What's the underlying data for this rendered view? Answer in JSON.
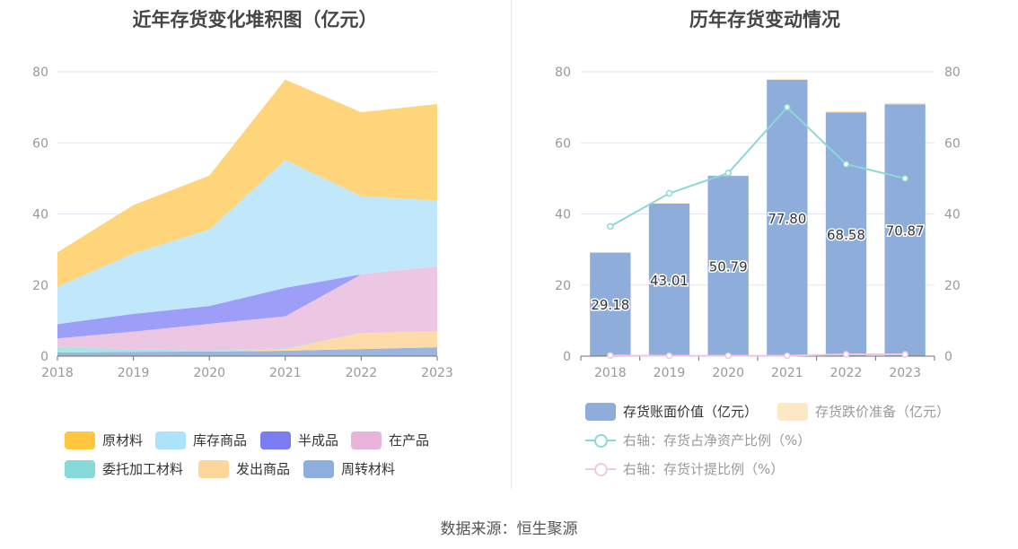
{
  "page": {
    "source_label": "数据来源：恒生聚源"
  },
  "left_chart": {
    "title": "近年存货变化堆积图（亿元）"
  },
  "right_chart": {
    "title": "历年存货变动情况"
  },
  "chart_data": [
    {
      "type": "area",
      "title": "近年存货变化堆积图（亿元）",
      "stacked": true,
      "categories": [
        "2018",
        "2019",
        "2020",
        "2021",
        "2022",
        "2023"
      ],
      "y_ticks": [
        "0",
        "20",
        "40",
        "60",
        "80"
      ],
      "ylim": [
        0,
        80
      ],
      "grid": true,
      "legend_position": "bottom",
      "series": [
        {
          "name": "周转材料",
          "color": "#9bb5df",
          "values": [
            1.0,
            1.2,
            1.3,
            1.5,
            2.0,
            2.5
          ]
        },
        {
          "name": "发出商品",
          "color": "#fddcaa",
          "values": [
            0.0,
            0.0,
            0.0,
            0.5,
            4.5,
            4.5
          ]
        },
        {
          "name": "委托加工材料",
          "color": "#a9e4e4",
          "values": [
            1.5,
            0.7,
            0.3,
            0.2,
            0.0,
            0.0
          ]
        },
        {
          "name": "在产品",
          "color": "#ebc7e3",
          "values": [
            2.5,
            5.0,
            7.5,
            9.0,
            16.5,
            18.3
          ]
        },
        {
          "name": "半成品",
          "color": "#9c9ef7",
          "values": [
            4.0,
            5.0,
            5.0,
            8.0,
            0.0,
            0.0
          ]
        },
        {
          "name": "库存商品",
          "color": "#c1e7fb",
          "values": [
            10.5,
            17.0,
            21.5,
            36.0,
            22.0,
            18.5
          ]
        },
        {
          "name": "原材料",
          "color": "#fed57b",
          "values": [
            9.7,
            13.6,
            15.2,
            22.6,
            23.6,
            27.1
          ]
        }
      ],
      "legend": [
        {
          "name": "原材料",
          "color": "#ffc63e"
        },
        {
          "name": "库存商品",
          "color": "#ace2fa"
        },
        {
          "name": "半成品",
          "color": "#7a7cf2"
        },
        {
          "name": "在产品",
          "color": "#e9b4dc"
        },
        {
          "name": "委托加工材料",
          "color": "#85dad9"
        },
        {
          "name": "发出商品",
          "color": "#fed59a"
        },
        {
          "name": "周转材料",
          "color": "#8eaee0"
        }
      ]
    },
    {
      "type": "bar",
      "title": "历年存货变动情况",
      "categories": [
        "2018",
        "2019",
        "2020",
        "2021",
        "2022",
        "2023"
      ],
      "y_ticks": [
        "0",
        "20",
        "40",
        "60",
        "80"
      ],
      "ylim": [
        0,
        80
      ],
      "y2_ticks": [
        "0",
        "20",
        "40",
        "60",
        "80"
      ],
      "y2lim": [
        0,
        80
      ],
      "grid": true,
      "legend_position": "bottom",
      "series": [
        {
          "name": "存货账面价值（亿元）",
          "type": "bar",
          "color": "#8eaddb",
          "values": [
            29.18,
            43.01,
            50.79,
            77.8,
            68.58,
            70.87
          ],
          "labels": [
            "29.18",
            "43.01",
            "50.79",
            "77.80",
            "68.58",
            "70.87"
          ]
        },
        {
          "name": "存货跌价准备（亿元）",
          "type": "bar",
          "color": "#fde7c4",
          "values": [
            0.05,
            0.05,
            0.05,
            0.1,
            0.4,
            0.4
          ]
        },
        {
          "name": "右轴：存货占净资产比例（%）",
          "type": "line",
          "axis": "right",
          "color": "#8dd7d8",
          "values": [
            36.5,
            45.8,
            51.5,
            70.0,
            54.0,
            50.0
          ]
        },
        {
          "name": "右轴：存货计提比例（%）",
          "type": "line",
          "axis": "right",
          "color": "#eec8e5",
          "values": [
            0.2,
            0.1,
            0.1,
            0.1,
            0.5,
            0.5
          ]
        }
      ]
    }
  ]
}
